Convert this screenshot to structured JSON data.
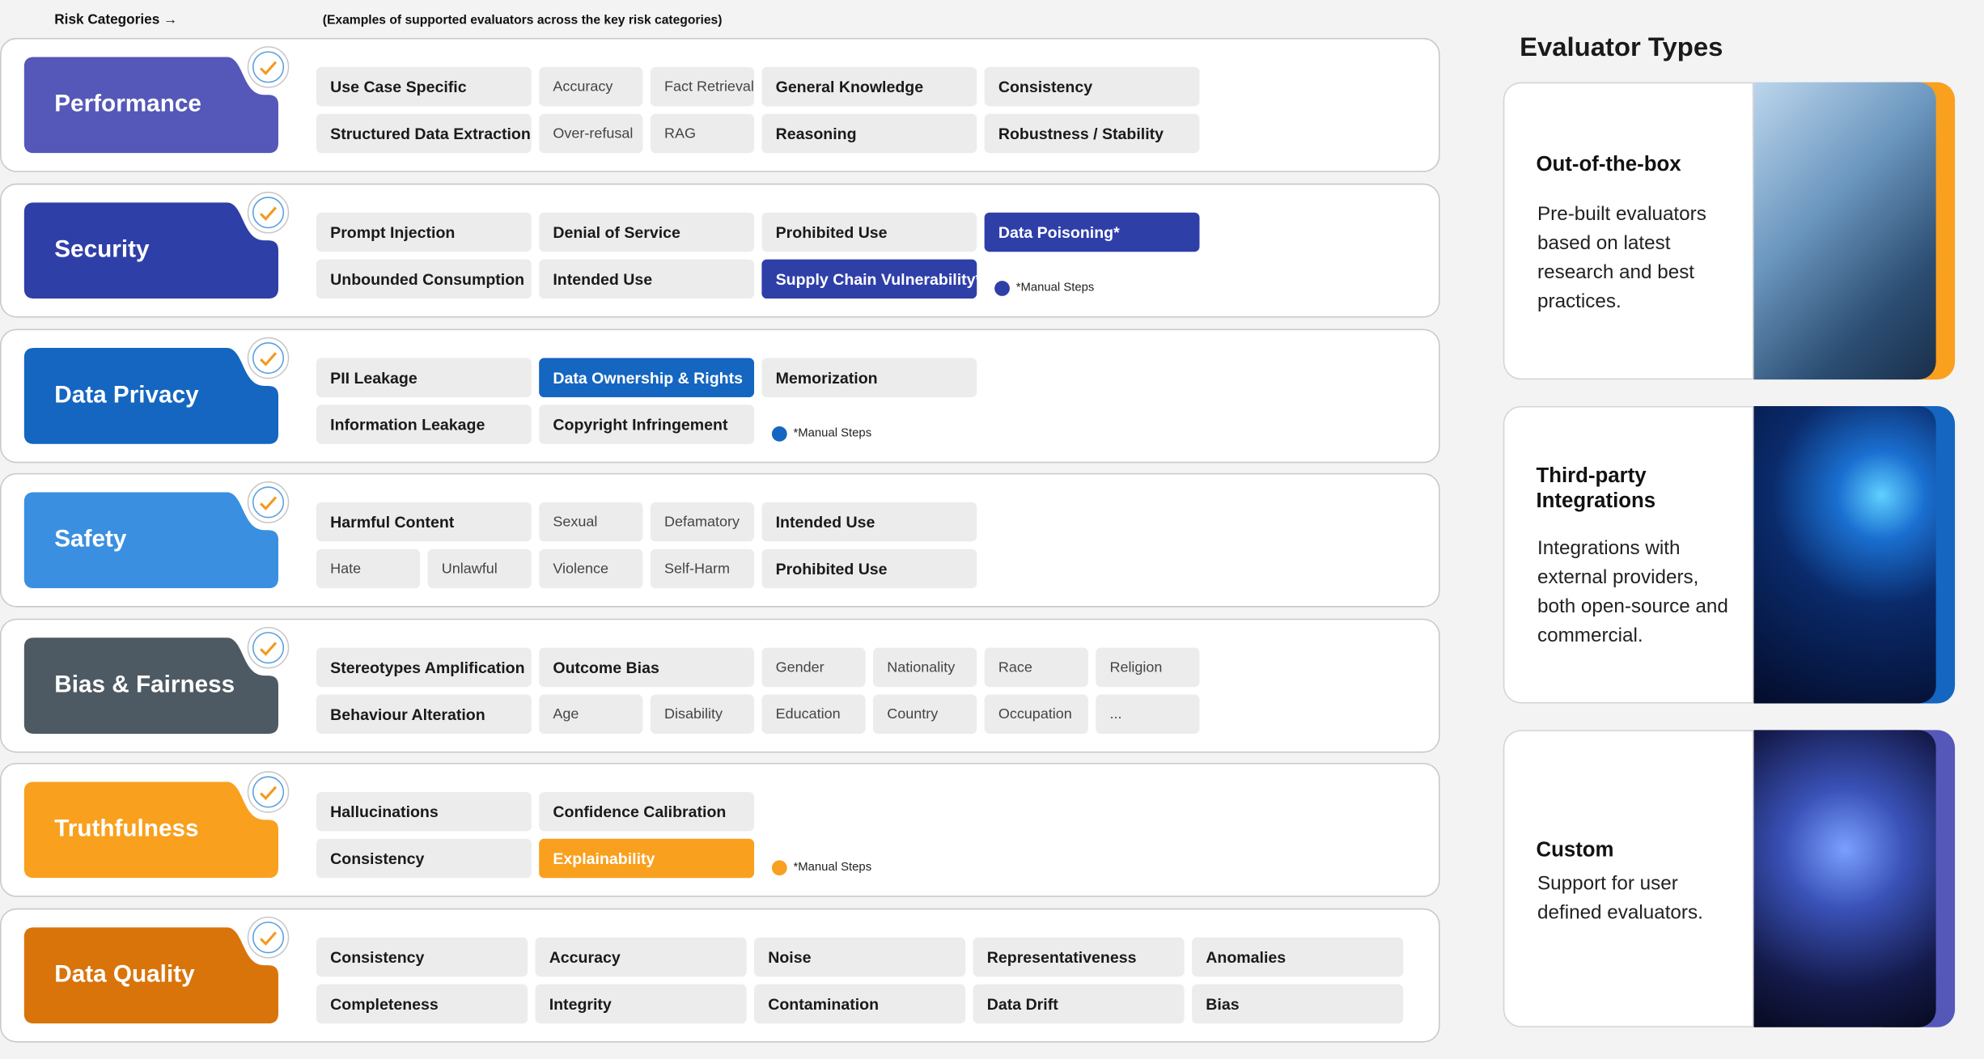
{
  "header": {
    "left": "Risk Categories →",
    "right": "(Examples of supported evaluators across the key risk categories)"
  },
  "categories": [
    {
      "name": "Performance",
      "color": "#5558b8",
      "rows": [
        [
          {
            "text": "Use Case Specific",
            "kind": "bold"
          },
          {
            "text": "Accuracy",
            "kind": "light"
          },
          {
            "text": "Fact Retrieval",
            "kind": "light"
          },
          {
            "text": "General Knowledge",
            "kind": "bold"
          },
          {
            "text": "Consistency",
            "kind": "bold"
          }
        ],
        [
          {
            "text": "Structured Data Extraction",
            "kind": "bold"
          },
          {
            "text": "Over-refusal",
            "kind": "light"
          },
          {
            "text": "RAG",
            "kind": "light"
          },
          {
            "text": "Reasoning",
            "kind": "bold"
          },
          {
            "text": "Robustness / Stability",
            "kind": "bold"
          }
        ]
      ]
    },
    {
      "name": "Security",
      "color": "#2f3fa8",
      "rows": [
        [
          {
            "text": "Prompt Injection",
            "kind": "bold"
          },
          {
            "text": "Denial of Service",
            "kind": "bold"
          },
          {
            "text": "Prohibited Use",
            "kind": "bold"
          },
          {
            "text": "Data Poisoning*",
            "kind": "manual"
          }
        ],
        [
          {
            "text": "Unbounded Consumption",
            "kind": "bold"
          },
          {
            "text": "Intended Use",
            "kind": "bold"
          },
          {
            "text": "Supply Chain Vulnerability*",
            "kind": "manual"
          }
        ]
      ],
      "note": "*Manual Steps"
    },
    {
      "name": "Data Privacy",
      "color": "#1466c0",
      "rows": [
        [
          {
            "text": "PII Leakage",
            "kind": "bold"
          },
          {
            "text": "Data Ownership & Rights",
            "kind": "manual"
          },
          {
            "text": "Memorization",
            "kind": "bold"
          }
        ],
        [
          {
            "text": "Information Leakage",
            "kind": "bold"
          },
          {
            "text": "Copyright Infringement",
            "kind": "bold"
          }
        ]
      ],
      "note": "*Manual Steps"
    },
    {
      "name": "Safety",
      "color": "#3a8fe0",
      "rows": [
        [
          {
            "text": "Harmful Content",
            "kind": "bold"
          },
          {
            "text": "Sexual",
            "kind": "light"
          },
          {
            "text": "Defamatory",
            "kind": "light"
          },
          {
            "text": "Intended Use",
            "kind": "bold"
          }
        ],
        [
          {
            "text": "Hate",
            "kind": "light"
          },
          {
            "text": "Unlawful",
            "kind": "light"
          },
          {
            "text": "Violence",
            "kind": "light"
          },
          {
            "text": "Self-Harm",
            "kind": "light"
          },
          {
            "text": "Prohibited Use",
            "kind": "bold"
          }
        ]
      ]
    },
    {
      "name": "Bias & Fairness",
      "color": "#4e5a63",
      "rows": [
        [
          {
            "text": "Stereotypes Amplification",
            "kind": "bold"
          },
          {
            "text": "Outcome Bias",
            "kind": "bold"
          },
          {
            "text": "Gender",
            "kind": "light"
          },
          {
            "text": "Nationality",
            "kind": "light"
          },
          {
            "text": "Race",
            "kind": "light"
          },
          {
            "text": "Religion",
            "kind": "light"
          }
        ],
        [
          {
            "text": "Behaviour Alteration",
            "kind": "bold"
          },
          {
            "text": "Age",
            "kind": "light"
          },
          {
            "text": "Disability",
            "kind": "light"
          },
          {
            "text": "Education",
            "kind": "light"
          },
          {
            "text": "Country",
            "kind": "light"
          },
          {
            "text": "Occupation",
            "kind": "light"
          },
          {
            "text": "...",
            "kind": "light"
          }
        ]
      ]
    },
    {
      "name": "Truthfulness",
      "color": "#f9a01e",
      "rows": [
        [
          {
            "text": "Hallucinations",
            "kind": "bold"
          },
          {
            "text": "Confidence Calibration",
            "kind": "bold"
          }
        ],
        [
          {
            "text": "Consistency",
            "kind": "bold"
          },
          {
            "text": "Explainability",
            "kind": "manual"
          }
        ]
      ],
      "note": "*Manual Steps"
    },
    {
      "name": "Data Quality",
      "color": "#d9740a",
      "rows": [
        [
          {
            "text": "Consistency",
            "kind": "wide"
          },
          {
            "text": "Accuracy",
            "kind": "wide"
          },
          {
            "text": "Noise",
            "kind": "wide"
          },
          {
            "text": "Representativeness",
            "kind": "wide"
          },
          {
            "text": "Anomalies",
            "kind": "wide"
          }
        ],
        [
          {
            "text": "Completeness",
            "kind": "wide"
          },
          {
            "text": "Integrity",
            "kind": "wide"
          },
          {
            "text": "Contamination",
            "kind": "wide"
          },
          {
            "text": "Data Drift",
            "kind": "wide"
          },
          {
            "text": "Bias",
            "kind": "wide"
          }
        ]
      ]
    }
  ],
  "evaluators": {
    "title": "Evaluator Types",
    "items": [
      {
        "name": "Out-of-the-box",
        "description": "Pre-built evaluators based on latest research and best practices.",
        "color": "#f9a01e"
      },
      {
        "name": "Third-party Integrations",
        "description": "Integrations with external providers, both open-source and commercial.",
        "color": "#1466c0"
      },
      {
        "name": "Custom",
        "description": "Support for user defined evaluators.",
        "color": "#5558b8"
      }
    ]
  }
}
